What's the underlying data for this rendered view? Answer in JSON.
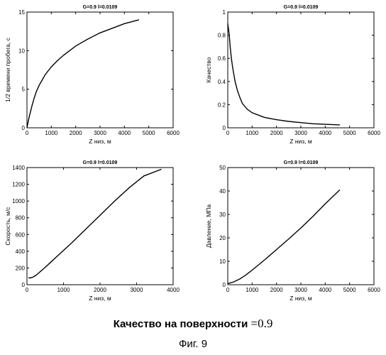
{
  "chart_data": [
    {
      "type": "line",
      "title": "G=0.9   l=0.0109",
      "xlabel": "Z низ, м",
      "ylabel": "1/2 времени пробега, с",
      "xlim": [
        0,
        6000
      ],
      "ylim": [
        0,
        15
      ],
      "xticks": [
        "0",
        "1000",
        "2000",
        "3000",
        "4000",
        "5000",
        "6000"
      ],
      "yticks": [
        "0",
        "5",
        "10",
        "15"
      ],
      "series": [
        {
          "x": [
            0,
            50,
            100,
            200,
            300,
            400,
            500,
            750,
            1000,
            1250,
            1500,
            2000,
            2500,
            3000,
            3500,
            4000,
            4600
          ],
          "y": [
            0,
            0.8,
            1.5,
            2.8,
            3.9,
            4.8,
            5.5,
            6.9,
            7.9,
            8.7,
            9.4,
            10.6,
            11.5,
            12.3,
            12.9,
            13.5,
            14.0
          ]
        }
      ]
    },
    {
      "type": "line",
      "title": "G=0.9   l=0.0109",
      "xlabel": "Z низ, м",
      "ylabel": "Качество",
      "xlim": [
        0,
        6000
      ],
      "ylim": [
        0,
        1
      ],
      "xticks": [
        "0",
        "1000",
        "2000",
        "3000",
        "4000",
        "5000",
        "6000"
      ],
      "yticks": [
        "0",
        "0.2",
        "0.4",
        "0.6",
        "0.8",
        "1"
      ],
      "series": [
        {
          "x": [
            0,
            25,
            60,
            100,
            150,
            200,
            300,
            400,
            500,
            600,
            800,
            1000,
            1500,
            2000,
            2500,
            3000,
            3500,
            4000,
            4600
          ],
          "y": [
            0.9,
            0.86,
            0.8,
            0.7,
            0.6,
            0.52,
            0.4,
            0.32,
            0.26,
            0.21,
            0.16,
            0.13,
            0.09,
            0.07,
            0.055,
            0.045,
            0.035,
            0.03,
            0.025
          ]
        }
      ]
    },
    {
      "type": "line",
      "title": "G=0.9   l=0.0109",
      "xlabel": "Z низ, м",
      "ylabel": "Скорость, м/с",
      "xlim": [
        0,
        5000
      ],
      "ylim": [
        0,
        1400
      ],
      "xticks": [
        "0",
        "1000",
        "2000",
        "3000",
        "4000"
      ],
      "yticks": [
        "0",
        "200",
        "400",
        "600",
        "800",
        "1000",
        "1200",
        "1400"
      ],
      "series": [
        {
          "x": [
            50,
            100,
            200,
            300,
            400,
            600,
            800,
            1000,
            1500,
            2000,
            2500,
            3000,
            3500,
            4000,
            4600
          ],
          "y": [
            85,
            80,
            90,
            110,
            140,
            200,
            265,
            330,
            490,
            660,
            830,
            1000,
            1160,
            1300,
            1380
          ]
        }
      ]
    },
    {
      "type": "line",
      "title": "G=0.9   l=0.0109",
      "xlabel": "Z низ, м",
      "ylabel": "Давление, МПа",
      "xlim": [
        0,
        6000
      ],
      "ylim": [
        0,
        50
      ],
      "xticks": [
        "0",
        "1000",
        "2000",
        "3000",
        "4000",
        "5000",
        "6000"
      ],
      "yticks": [
        "0",
        "10",
        "20",
        "30",
        "40",
        "50"
      ],
      "series": [
        {
          "x": [
            0,
            250,
            500,
            750,
            1000,
            1500,
            2000,
            2500,
            3000,
            3500,
            4000,
            4600
          ],
          "y": [
            0.5,
            1.2,
            2.5,
            4.2,
            6.2,
            10.5,
            15.0,
            19.5,
            24.2,
            29.2,
            34.5,
            40.5
          ]
        }
      ]
    }
  ],
  "caption": {
    "text": "Качество на поверхности",
    "eq": "=",
    "value": "0.9"
  },
  "figure_label": "Фиг. 9"
}
